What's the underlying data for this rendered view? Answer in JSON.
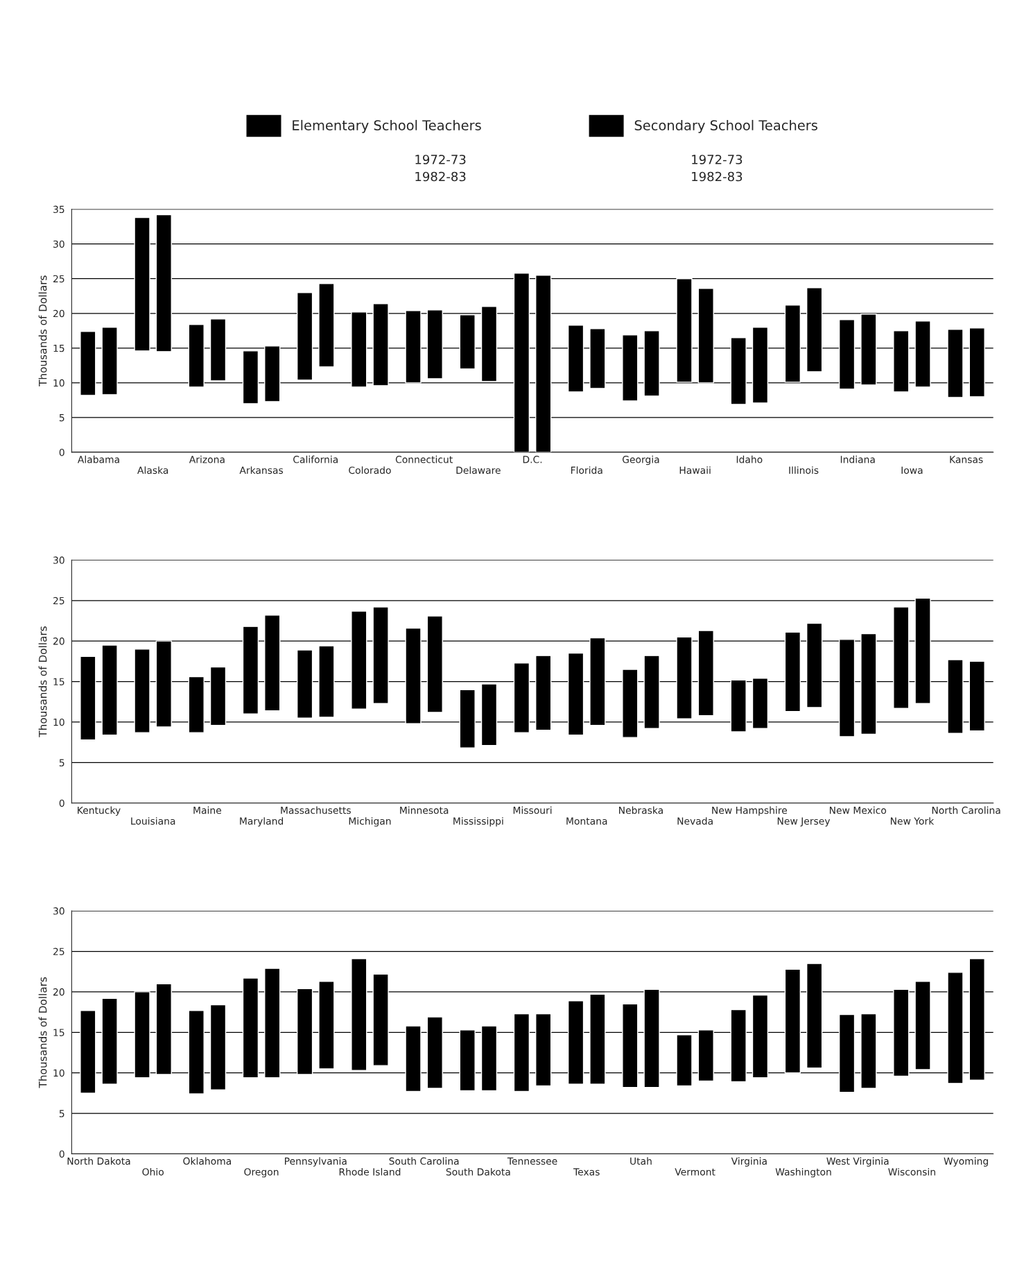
{
  "chart_data": [
    {
      "type": "bar",
      "ylabel": "Thousands of Dollars",
      "categories": [
        "Alabama",
        "Alaska",
        "Arizona",
        "Arkansas",
        "California",
        "Colorado",
        "Connecticut",
        "Delaware",
        "D.C.",
        "Florida",
        "Georgia",
        "Hawaii",
        "Idaho",
        "Illinois",
        "Indiana",
        "Iowa",
        "Kansas"
      ],
      "series": [
        {
          "name": "Elementary School Teachers",
          "color": "#000000",
          "base": [
            8.2,
            14.6,
            9.4,
            7.0,
            10.4,
            9.4,
            10.0,
            12.0,
            0,
            8.7,
            7.4,
            10.1,
            6.9,
            10.1,
            9.1,
            8.7,
            7.9
          ],
          "values": [
            9.2,
            19.2,
            9.0,
            7.6,
            12.6,
            10.8,
            10.4,
            7.8,
            25.8,
            9.6,
            9.5,
            14.9,
            9.6,
            11.1,
            10.0,
            8.8,
            9.8
          ]
        },
        {
          "name": "Secondary School Teachers",
          "color": "#000000",
          "base": [
            8.3,
            14.5,
            10.3,
            7.3,
            12.3,
            9.6,
            10.6,
            10.2,
            0,
            9.2,
            8.1,
            10.0,
            7.1,
            11.6,
            9.7,
            9.4,
            8.0
          ],
          "values": [
            9.7,
            19.7,
            8.9,
            8.0,
            12.0,
            11.8,
            9.9,
            10.8,
            25.5,
            8.6,
            9.4,
            13.6,
            10.9,
            12.1,
            10.2,
            9.5,
            9.9
          ]
        }
      ],
      "ylim": [
        0,
        35
      ],
      "yticks": [
        0,
        5,
        10,
        15,
        20,
        25,
        30,
        35
      ],
      "grid": "y",
      "legend": "top",
      "annotations": [
        "1972-73",
        "1982-83",
        "1972-73",
        "1982-83"
      ]
    },
    {
      "type": "bar",
      "ylabel": "Thousands of Dollars",
      "categories": [
        "Kentucky",
        "Louisiana",
        "Maine",
        "Maryland",
        "Massachusetts",
        "Michigan",
        "Minnesota",
        "Mississippi",
        "Missouri",
        "Montana",
        "Nebraska",
        "Nevada",
        "New Hampshire",
        "New Jersey",
        "New Mexico",
        "New York",
        "North Carolina"
      ],
      "series": [
        {
          "color": "#000000",
          "base": [
            7.8,
            8.7,
            8.7,
            11.0,
            10.5,
            11.6,
            9.8,
            6.8,
            8.7,
            8.4,
            8.1,
            10.4,
            8.8,
            11.3,
            8.2,
            11.7,
            8.6
          ],
          "values": [
            10.3,
            10.3,
            6.9,
            10.8,
            8.4,
            12.1,
            11.8,
            7.2,
            8.6,
            10.1,
            8.4,
            10.1,
            6.4,
            9.8,
            12.0,
            12.5,
            9.1
          ]
        },
        {
          "color": "#000000",
          "base": [
            8.4,
            9.4,
            9.6,
            11.4,
            10.6,
            12.3,
            11.2,
            7.1,
            9.0,
            9.6,
            9.2,
            10.8,
            9.2,
            11.8,
            8.5,
            12.3,
            8.9
          ],
          "values": [
            11.1,
            10.6,
            7.2,
            11.8,
            8.8,
            11.9,
            11.9,
            7.6,
            9.2,
            10.8,
            9.0,
            10.5,
            6.2,
            10.4,
            12.4,
            13.0,
            8.6
          ]
        }
      ],
      "ylim": [
        0,
        30
      ],
      "yticks": [
        0,
        5,
        10,
        15,
        20,
        25,
        30
      ],
      "grid": "y"
    },
    {
      "type": "bar",
      "ylabel": "Thousands of Dollars",
      "categories": [
        "North Dakota",
        "Ohio",
        "Oklahoma",
        "Oregon",
        "Pennsylvania",
        "Rhode Island",
        "South Carolina",
        "South Dakota",
        "Tennessee",
        "Texas",
        "Utah",
        "Vermont",
        "Virginia",
        "Washington",
        "West Virginia",
        "Wisconsin",
        "Wyoming"
      ],
      "series": [
        {
          "color": "#000000",
          "base": [
            7.5,
            9.4,
            7.4,
            9.4,
            9.8,
            10.3,
            7.7,
            7.8,
            7.7,
            8.6,
            8.2,
            8.4,
            8.9,
            10.0,
            7.6,
            9.6,
            8.7
          ],
          "values": [
            10.2,
            10.6,
            10.3,
            12.3,
            10.6,
            13.8,
            8.1,
            7.5,
            9.6,
            10.3,
            10.3,
            6.3,
            8.9,
            12.8,
            9.6,
            10.7,
            13.7
          ]
        },
        {
          "color": "#000000",
          "base": [
            8.6,
            9.8,
            7.9,
            9.4,
            10.5,
            10.9,
            8.1,
            7.8,
            8.4,
            8.6,
            8.2,
            9.0,
            9.4,
            10.6,
            8.1,
            10.4,
            9.1
          ],
          "values": [
            10.6,
            11.2,
            10.5,
            13.5,
            10.8,
            11.3,
            8.8,
            8.0,
            8.9,
            11.1,
            12.1,
            6.3,
            10.2,
            12.9,
            9.2,
            10.9,
            15.0
          ]
        }
      ],
      "ylim": [
        0,
        30
      ],
      "yticks": [
        0,
        5,
        10,
        15,
        20,
        25,
        30
      ],
      "grid": "y"
    }
  ]
}
